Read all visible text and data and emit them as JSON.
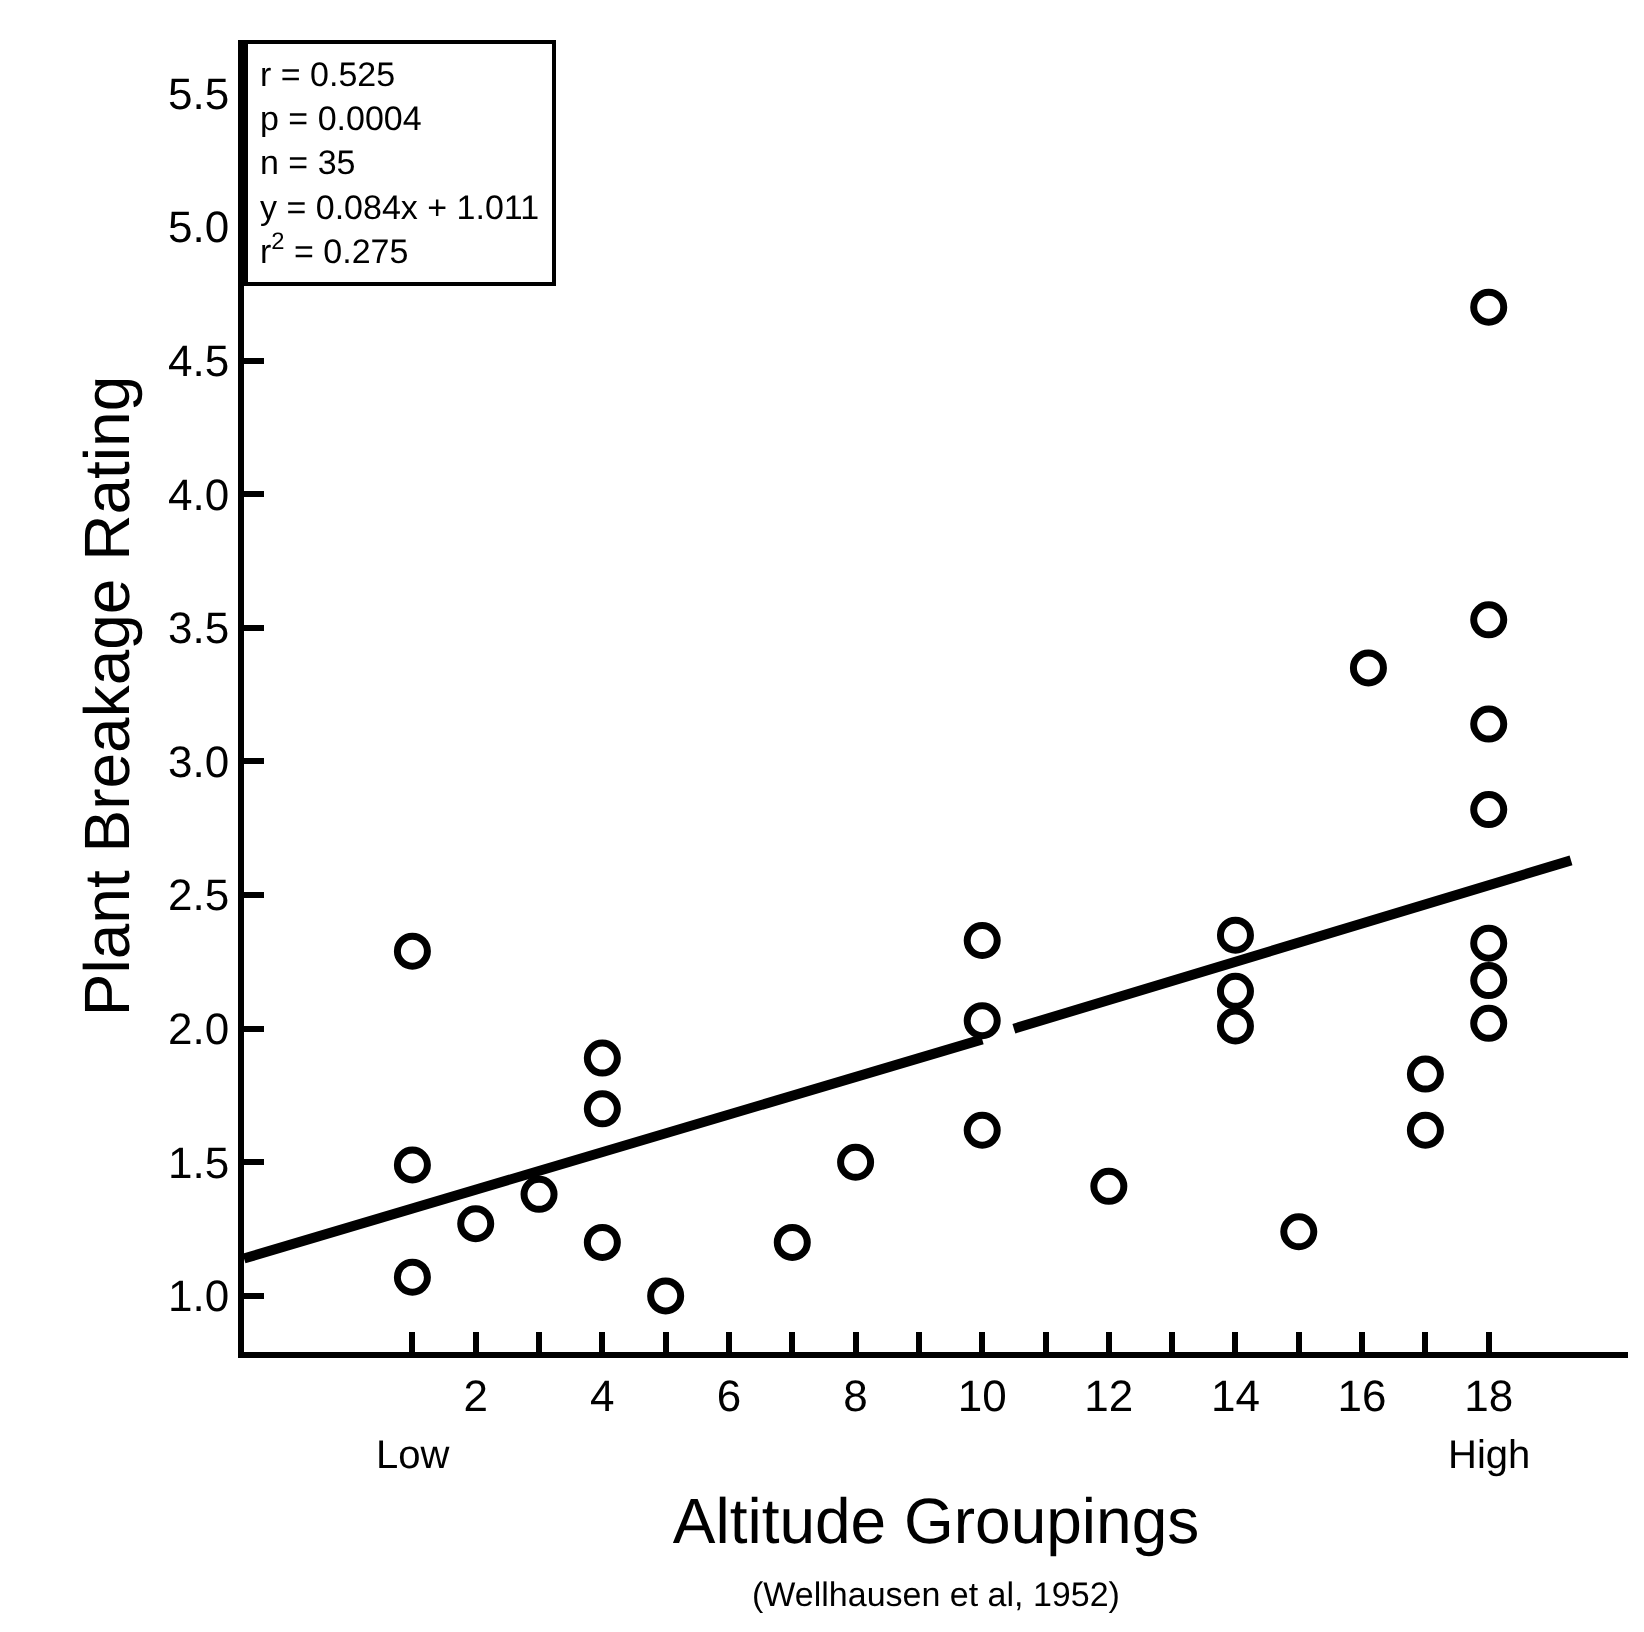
{
  "chart_data": {
    "type": "scatter",
    "xlabel": "Altitude Groupings",
    "ylabel": "Plant Breakage Rating",
    "series": [
      {
        "marker": "circle",
        "color": "#000000",
        "x": [
          1,
          1,
          1,
          2,
          3,
          4,
          4,
          4,
          5,
          7,
          8,
          10,
          10,
          10,
          12,
          14,
          14,
          14,
          15,
          16.1,
          17,
          17,
          18,
          18,
          18,
          18,
          18,
          18,
          18
        ],
        "values": [
          2.29,
          1.49,
          1.07,
          1.27,
          1.38,
          1.89,
          1.7,
          1.2,
          1.0,
          1.2,
          1.5,
          2.33,
          2.03,
          1.62,
          1.41,
          2.35,
          2.14,
          2.01,
          1.24,
          3.35,
          1.83,
          1.62,
          4.7,
          3.53,
          3.14,
          2.82,
          2.32,
          2.18,
          2.02
        ]
      },
      {
        "type": "line",
        "marker": "none",
        "line_style": "solid",
        "color": "#000000",
        "x": [
          -1.66,
          10,
          10.25,
          10.5,
          19.3
        ],
        "values": [
          1.14,
          1.96,
          null,
          2.0,
          2.63
        ]
      }
    ],
    "xlim": [
      -1.66,
      20.2
    ],
    "ylim": [
      0.79,
      5.7
    ],
    "xticks": [
      {
        "value": 1,
        "label": null
      },
      2,
      {
        "value": 3,
        "label": null
      },
      4,
      {
        "value": 5,
        "label": null
      },
      6,
      {
        "value": 7,
        "label": null
      },
      8,
      {
        "value": 9,
        "label": null
      },
      10,
      {
        "value": 11,
        "label": null
      },
      12,
      {
        "value": 13,
        "label": null
      },
      14,
      {
        "value": 15,
        "label": null
      },
      16,
      {
        "value": 17,
        "label": null
      },
      18
    ],
    "yticks": [
      {
        "value": 1,
        "label": "1.0"
      },
      1.5,
      {
        "value": 2,
        "label": "2.0"
      },
      2.5,
      {
        "value": 3,
        "label": "3.0"
      },
      3.5,
      {
        "value": 4,
        "label": "4.0"
      },
      4.5,
      {
        "value": 5,
        "label": "5.0"
      },
      5.5
    ],
    "annotations": [
      "r = 0.525",
      "p = 0.0004",
      "n = 35",
      "y = 0.084x + 1.011",
      "r$^{2}$ = 0.275",
      "Low",
      "High",
      "(Wellhausen et al, 1952)"
    ]
  }
}
